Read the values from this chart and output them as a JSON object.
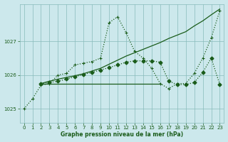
{
  "bg_color": "#cce8ec",
  "grid_color": "#88bbbb",
  "line_color": "#1a5c1a",
  "title": "Graphe pression niveau de la mer (hPa)",
  "xlim": [
    -0.5,
    23.5
  ],
  "ylim": [
    1024.6,
    1028.1
  ],
  "yticks": [
    1025,
    1026,
    1027
  ],
  "xticks": [
    0,
    1,
    2,
    3,
    4,
    5,
    6,
    7,
    8,
    9,
    10,
    11,
    12,
    13,
    14,
    15,
    16,
    17,
    18,
    19,
    20,
    21,
    22,
    23
  ],
  "line1_x": [
    0,
    1,
    2,
    3,
    4,
    5,
    6,
    7,
    8,
    9,
    10,
    11,
    12,
    13,
    14,
    15,
    16,
    17,
    18,
    19,
    20,
    21,
    22,
    23
  ],
  "line1_y": [
    1025.0,
    1025.3,
    1025.7,
    1025.75,
    1026.0,
    1026.05,
    1026.3,
    1026.35,
    1026.4,
    1026.5,
    1027.55,
    1027.72,
    1027.25,
    1026.7,
    1026.5,
    1026.2,
    1025.75,
    1025.6,
    1025.75,
    1025.75,
    1026.05,
    1026.5,
    1027.1,
    1027.9
  ],
  "line2_x": [
    2,
    3,
    4,
    5,
    6,
    7,
    8,
    9,
    10,
    11,
    12,
    13,
    14,
    15,
    16
  ],
  "line2_y": [
    1025.75,
    1025.75,
    1025.75,
    1025.75,
    1025.75,
    1025.75,
    1025.75,
    1025.75,
    1025.75,
    1025.75,
    1025.75,
    1025.75,
    1025.75,
    1025.75,
    1025.75
  ],
  "line3_x": [
    2,
    3,
    4,
    5,
    6,
    7,
    8,
    9,
    10,
    11,
    12,
    13,
    14,
    15,
    16,
    17,
    18,
    19,
    20,
    21,
    22,
    23
  ],
  "line3_y": [
    1025.75,
    1025.82,
    1025.88,
    1025.93,
    1025.98,
    1026.04,
    1026.12,
    1026.2,
    1026.32,
    1026.44,
    1026.56,
    1026.66,
    1026.76,
    1026.86,
    1026.96,
    1027.08,
    1027.18,
    1027.28,
    1027.45,
    1027.6,
    1027.78,
    1027.95
  ],
  "line4_x": [
    2,
    3,
    4,
    5,
    6,
    7,
    8,
    9,
    10,
    11,
    12,
    13,
    14,
    15,
    16,
    17,
    18,
    19,
    20,
    21,
    22,
    23
  ],
  "line4_y": [
    1025.75,
    1025.78,
    1025.82,
    1025.88,
    1025.95,
    1026.02,
    1026.08,
    1026.15,
    1026.22,
    1026.3,
    1026.38,
    1026.42,
    1026.42,
    1026.42,
    1026.38,
    1025.82,
    1025.72,
    1025.72,
    1025.78,
    1026.08,
    1026.5,
    1025.72
  ]
}
